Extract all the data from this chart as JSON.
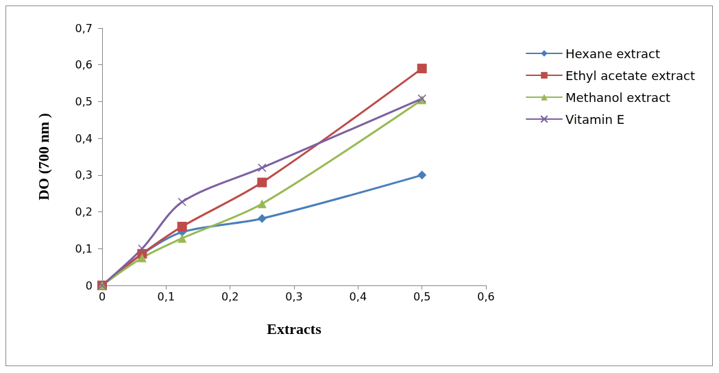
{
  "chart_data": {
    "type": "line",
    "xlabel": "Extracts",
    "ylabel": "DO (700 nm )",
    "x": [
      0,
      0.0625,
      0.125,
      0.25,
      0.5
    ],
    "series": [
      {
        "name": "Hexane extract",
        "color": "#4a7ebb",
        "marker": "diamond",
        "values": [
          0,
          0.085,
          0.145,
          0.182,
          0.3
        ]
      },
      {
        "name": "Ethyl acetate extract",
        "color": "#be4b48",
        "marker": "square",
        "values": [
          0,
          0.086,
          0.16,
          0.28,
          0.59
        ]
      },
      {
        "name": "Methanol extract",
        "color": "#98b954",
        "marker": "triangle",
        "values": [
          0,
          0.075,
          0.128,
          0.222,
          0.505
        ]
      },
      {
        "name": "Vitamin E",
        "color": "#7d60a0",
        "marker": "cross",
        "values": [
          0,
          0.1,
          0.227,
          0.32,
          0.508
        ]
      }
    ],
    "xlim": [
      0,
      0.6
    ],
    "xticks": [
      {
        "value": 0,
        "label": "0"
      },
      {
        "value": 0.1,
        "label": "0,1"
      },
      {
        "value": 0.2,
        "label": "0,2"
      },
      {
        "value": 0.3,
        "label": "0,3"
      },
      {
        "value": 0.4,
        "label": "0,4"
      },
      {
        "value": 0.5,
        "label": "0,5"
      },
      {
        "value": 0.6,
        "label": "0,6"
      }
    ],
    "ylim": [
      0,
      0.7
    ],
    "yticks": [
      {
        "value": 0,
        "label": "0"
      },
      {
        "value": 0.1,
        "label": "0,1"
      },
      {
        "value": 0.2,
        "label": "0,2"
      },
      {
        "value": 0.3,
        "label": "0,3"
      },
      {
        "value": 0.4,
        "label": "0,4"
      },
      {
        "value": 0.5,
        "label": "0,5"
      },
      {
        "value": 0.6,
        "label": "0,6"
      },
      {
        "value": 0.7,
        "label": "0,7"
      }
    ],
    "grid": false,
    "legend": "right",
    "line_style": "solid"
  }
}
